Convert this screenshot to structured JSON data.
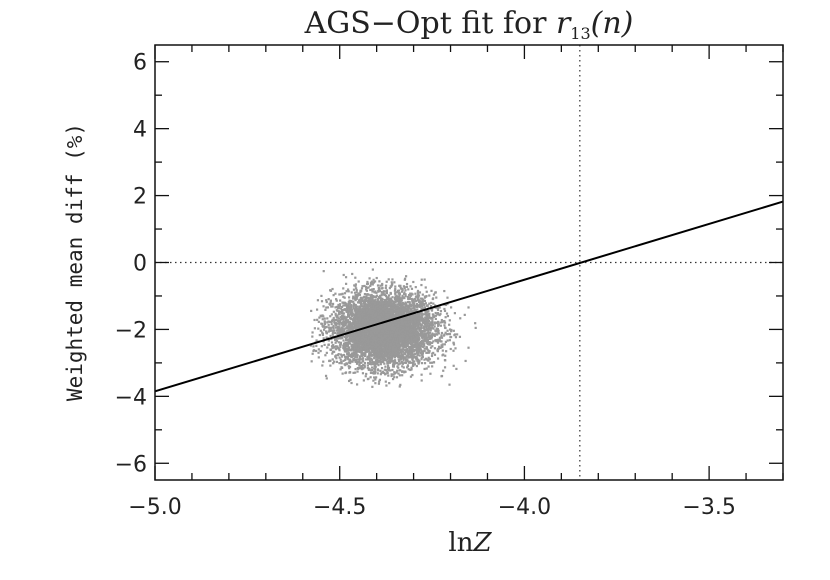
{
  "chart_data": {
    "type": "scatter",
    "title_prefix": "AGS−Opt fit for ",
    "title_var": "r",
    "title_sub": "13",
    "title_arg": "(n)",
    "xlabel_prefix": "ln",
    "xlabel_var": "Z",
    "ylabel": "Weighted mean diff (%)",
    "xlim": [
      -5.0,
      -3.3
    ],
    "ylim": [
      -6.5,
      6.5
    ],
    "xticks": [
      {
        "value": -5.0,
        "label": "−5.0"
      },
      {
        "value": -4.5,
        "label": "−4.5"
      },
      {
        "value": -4.0,
        "label": "−4.0"
      },
      {
        "value": -3.5,
        "label": "−3.5"
      }
    ],
    "yticks": [
      {
        "value": -6,
        "label": "−6"
      },
      {
        "value": -4,
        "label": "−4"
      },
      {
        "value": -2,
        "label": "−2"
      },
      {
        "value": 0,
        "label": "0"
      },
      {
        "value": 2,
        "label": "2"
      },
      {
        "value": 4,
        "label": "4"
      },
      {
        "value": 6,
        "label": "6"
      }
    ],
    "scatter_cloud": {
      "center_x": -4.38,
      "center_y": -2.0,
      "x_range": [
        -4.58,
        -4.13
      ],
      "y_range": [
        -3.75,
        -0.2
      ],
      "color": "#999999"
    },
    "fit_line": {
      "x": [
        -5.0,
        -3.3
      ],
      "y": [
        -3.85,
        1.82
      ],
      "color": "#000000"
    },
    "reference_lines": {
      "horizontal_y": 0,
      "vertical_x": -3.85,
      "style": "dotted"
    },
    "grid": false,
    "legend": "none"
  }
}
